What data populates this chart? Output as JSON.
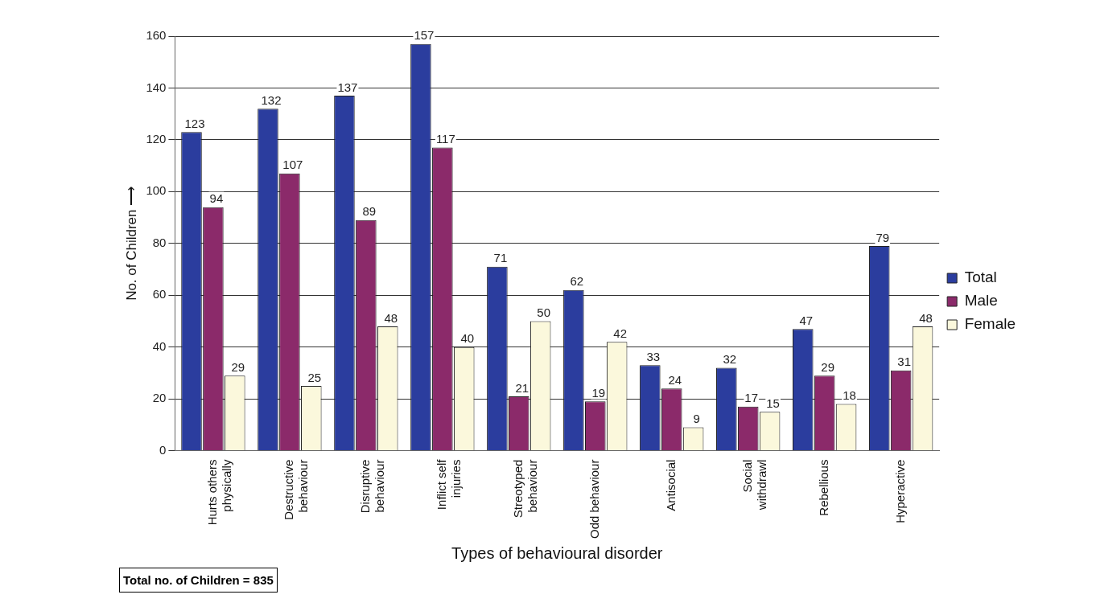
{
  "chart_data": {
    "type": "bar",
    "categories": [
      "Hurts others physically",
      "Destructive behaviour",
      "Disruptive behaviour",
      "Inflict self injuries",
      "Streotyped behaviour",
      "Odd behaviour",
      "Antisocial",
      "Social withdrawl",
      "Rebellious",
      "Hyperactive"
    ],
    "series": [
      {
        "name": "Total",
        "color": "#2b3d9e",
        "values": [
          123,
          132,
          137,
          157,
          71,
          62,
          33,
          32,
          47,
          79
        ]
      },
      {
        "name": "Male",
        "color": "#8b2a6a",
        "values": [
          94,
          107,
          89,
          117,
          21,
          19,
          24,
          17,
          29,
          31
        ]
      },
      {
        "name": "Female",
        "color": "#fbf8dc",
        "values": [
          29,
          25,
          48,
          40,
          50,
          42,
          9,
          15,
          18,
          48
        ]
      }
    ],
    "ylim": [
      0,
      160
    ],
    "yticks": [
      0,
      20,
      40,
      60,
      80,
      100,
      120,
      140,
      160
    ],
    "ylabel": "No. of Children ⟶",
    "xlabel": "Types of behavioural disorder",
    "annotations": [
      "Total no. of Children = 835"
    ],
    "grid": "y",
    "legend": "right",
    "data_labels": true
  }
}
